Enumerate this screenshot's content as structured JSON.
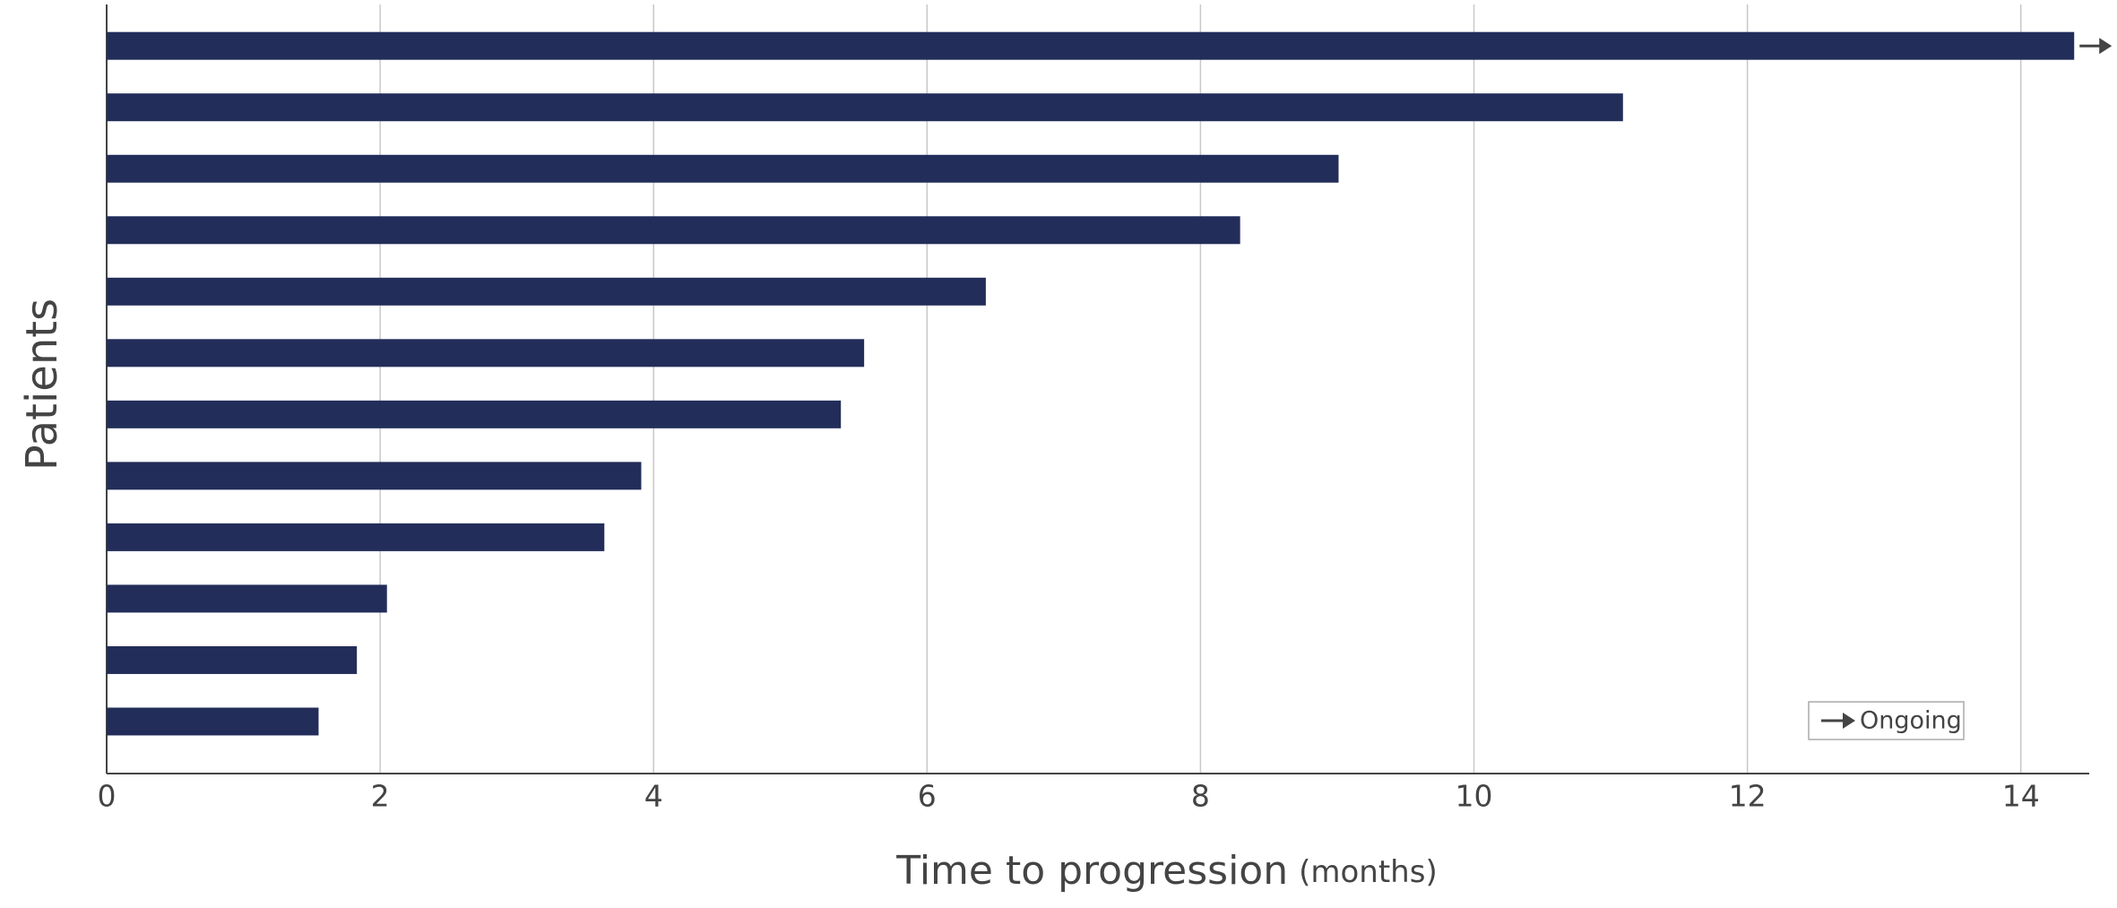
{
  "chart_data": {
    "type": "bar",
    "orientation": "horizontal",
    "x_label": "Time to progression",
    "x_label_unit": "(months)",
    "y_label": "Patients",
    "categories": [
      null,
      null,
      null,
      null,
      null,
      null,
      null,
      null,
      null,
      null,
      null,
      null
    ],
    "values": [
      14.39,
      11.09,
      9.01,
      8.29,
      6.43,
      5.54,
      5.37,
      3.91,
      3.64,
      2.05,
      1.83,
      1.55
    ],
    "ongoing": [
      true,
      false,
      false,
      false,
      false,
      false,
      false,
      false,
      false,
      false,
      false,
      false
    ],
    "legend": {
      "label": "Ongoing",
      "position": "lower right"
    },
    "color": "#222d5a",
    "xlim": [
      0,
      14.5
    ],
    "xticks": [
      0,
      2,
      4,
      6,
      8,
      10,
      12,
      14
    ],
    "grid": true
  }
}
